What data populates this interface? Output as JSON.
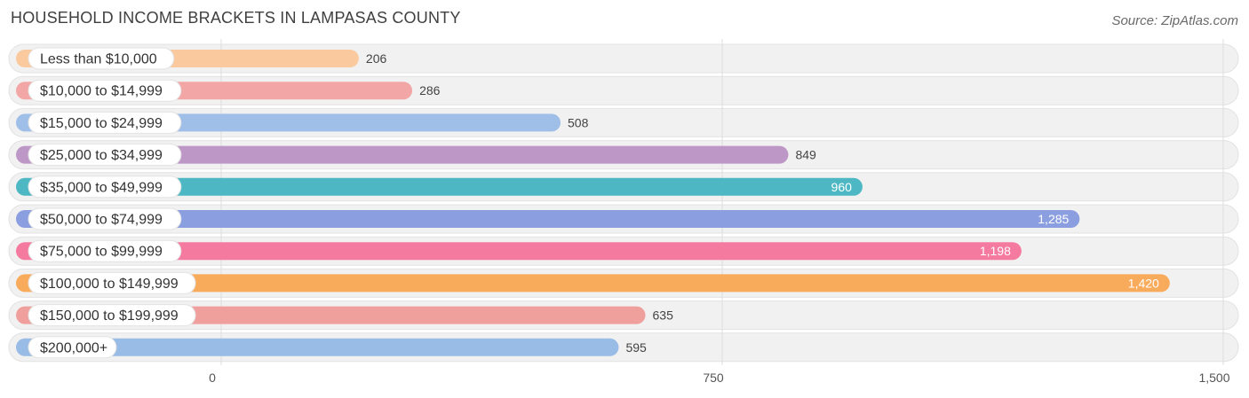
{
  "header": {
    "title": "HOUSEHOLD INCOME BRACKETS IN LAMPASAS COUNTY",
    "source": "Source: ZipAtlas.com"
  },
  "chart_data": {
    "type": "bar",
    "orientation": "horizontal",
    "categories": [
      "Less than $10,000",
      "$10,000 to $14,999",
      "$15,000 to $24,999",
      "$25,000 to $34,999",
      "$35,000 to $49,999",
      "$50,000 to $74,999",
      "$75,000 to $99,999",
      "$100,000 to $149,999",
      "$150,000 to $199,999",
      "$200,000+"
    ],
    "values": [
      206,
      286,
      508,
      849,
      960,
      1285,
      1198,
      1420,
      635,
      595
    ],
    "value_labels": [
      "206",
      "286",
      "508",
      "849",
      "960",
      "1,285",
      "1,198",
      "1,420",
      "635",
      "595"
    ],
    "colors": [
      "#fbc99e",
      "#f2a7a6",
      "#9fbfe8",
      "#bd98c6",
      "#4db8c3",
      "#8b9ee0",
      "#f57aa0",
      "#f9ab5c",
      "#efa09d",
      "#99bce6"
    ],
    "xlim": [
      0,
      1500
    ],
    "xticks": [
      0,
      750,
      1500
    ],
    "xtick_labels": [
      "0",
      "750",
      "1,500"
    ],
    "grid": true
  }
}
